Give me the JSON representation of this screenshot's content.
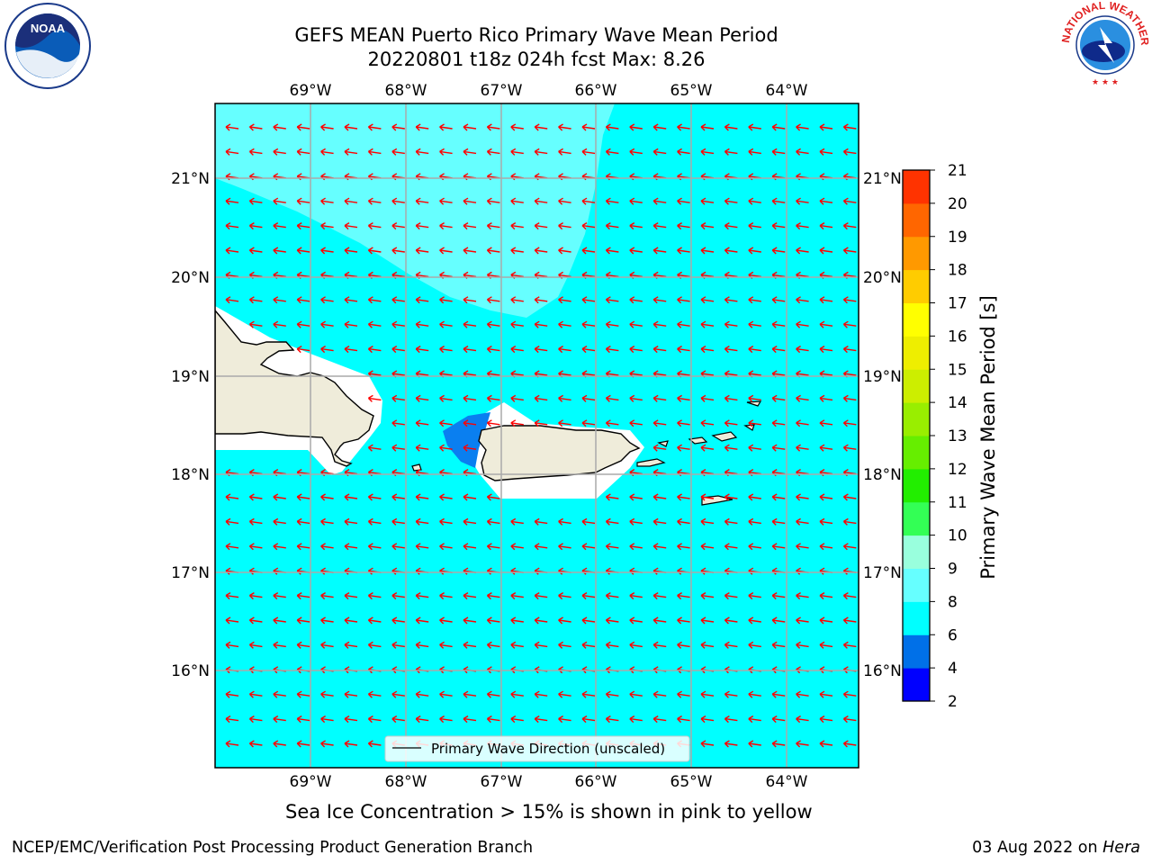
{
  "title_line1": "GEFS MEAN Puerto Rico Primary Wave Mean Period",
  "title_line2": "20220801 t18z 024h fcst   Max: 8.26",
  "legend_label": "Primary Wave Direction (unscaled)",
  "sea_ice_note": "Sea Ice Concentration > 15% is shown in pink to yellow",
  "footer_left": "NCEP/EMC/Verification Post Processing Product Generation Branch",
  "footer_right_date": "03 Aug 2022 on ",
  "footer_right_host": "Hera",
  "logos": {
    "left": "NOAA",
    "right_text": "NATIONAL WEATHER SERVICE"
  },
  "colorbar": {
    "label": "Primary Wave Mean Period [s]",
    "ticks": [
      "2",
      "4",
      "6",
      "8",
      "9",
      "10",
      "11",
      "12",
      "13",
      "14",
      "15",
      "16",
      "17",
      "18",
      "19",
      "20",
      "21"
    ],
    "colors": [
      "#0000ff",
      "#0070e8",
      "#00ffff",
      "#66ffff",
      "#99ffdd",
      "#33ff55",
      "#22ee00",
      "#66ee00",
      "#99ee00",
      "#ccee00",
      "#eeee00",
      "#ffff00",
      "#ffcc00",
      "#ff9900",
      "#ff6600",
      "#ff3300",
      "#ff0000"
    ]
  },
  "axes": {
    "x_ticks": [
      "69°W",
      "68°W",
      "67°W",
      "66°W",
      "65°W",
      "64°W"
    ],
    "y_ticks": [
      "21°N",
      "20°N",
      "19°N",
      "18°N",
      "17°N",
      "16°N"
    ]
  },
  "map_colors": {
    "ocean": "#00ffff",
    "light_region": "#66ffff",
    "shallow": "#0a7ff0",
    "land": "#efecda",
    "arrow": "#ff0000"
  }
}
